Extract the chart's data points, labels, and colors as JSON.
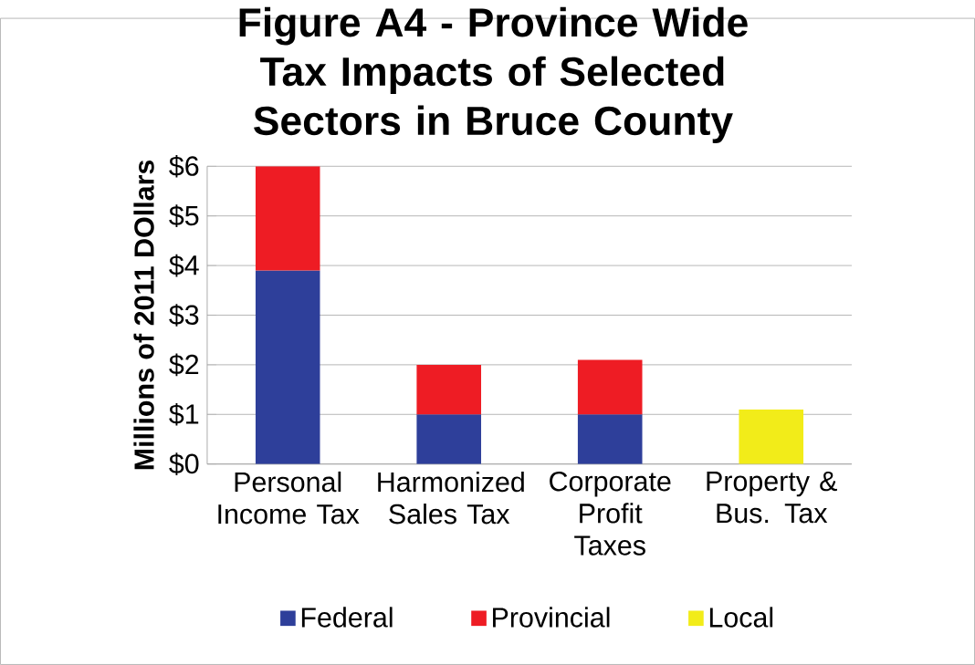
{
  "chart_data": {
    "type": "bar",
    "title": "Figure A4 - Province Wide Tax Impacts of Selected Sectors in Bruce County",
    "ylabel": "Millions of 2011 DOllars",
    "categories": [
      "Personal Income Tax",
      "Harmonized Sales Tax",
      "Corporate Profit Taxes",
      "Property & Bus. Tax"
    ],
    "stacked": true,
    "series": [
      {
        "name": "Federal",
        "color": "#2e3f9a",
        "values": [
          3.9,
          1.0,
          1.0,
          null
        ]
      },
      {
        "name": "Provincial",
        "color": "#ee1c24",
        "values": [
          2.1,
          1.0,
          1.1,
          null
        ]
      },
      {
        "name": "Local",
        "color": "#f2ec19",
        "values": [
          null,
          null,
          null,
          1.1
        ]
      }
    ],
    "ylim": [
      0,
      6
    ],
    "yticks": [
      {
        "value": 0,
        "label": "$0"
      },
      {
        "value": 1,
        "label": "$1"
      },
      {
        "value": 2,
        "label": "$2"
      },
      {
        "value": 3,
        "label": "$3"
      },
      {
        "value": 4,
        "label": "$4"
      },
      {
        "value": 5,
        "label": "$5"
      },
      {
        "value": 6,
        "label": "$6"
      }
    ],
    "grid": "y",
    "legend": "bottom"
  }
}
